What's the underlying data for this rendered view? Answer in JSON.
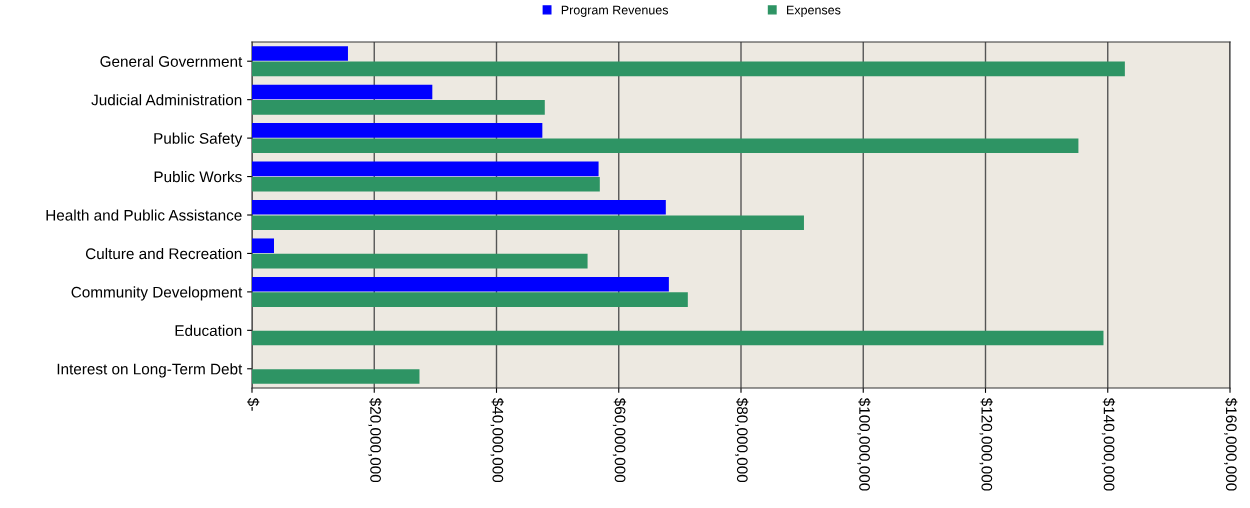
{
  "chart_data": {
    "type": "bar",
    "orientation": "horizontal",
    "categories": [
      "General Government",
      "Judicial Administration",
      "Public Safety",
      "Public Works",
      "Health and Public Assistance",
      "Culture and Recreation",
      "Community Development",
      "Education",
      "Interest on Long-Term Debt"
    ],
    "series": [
      {
        "name": "Program Revenues",
        "color": "#0000ff",
        "values": [
          15700000,
          29500000,
          47500000,
          56700000,
          67700000,
          3600000,
          68200000,
          null,
          null
        ]
      },
      {
        "name": "Expenses",
        "color": "#2e9464",
        "values": [
          142800000,
          47900000,
          135200000,
          56900000,
          90300000,
          54900000,
          71300000,
          139300000,
          27400000
        ]
      }
    ],
    "xlim": [
      0,
      160000000
    ],
    "xticks": [
      {
        "value": 0,
        "label": "$-"
      },
      {
        "value": 20000000,
        "label": "$20,000,000"
      },
      {
        "value": 40000000,
        "label": "$40,000,000"
      },
      {
        "value": 60000000,
        "label": "$60,000,000"
      },
      {
        "value": 80000000,
        "label": "$80,000,000"
      },
      {
        "value": 100000000,
        "label": "$100,000,000"
      },
      {
        "value": 120000000,
        "label": "$120,000,000"
      },
      {
        "value": 140000000,
        "label": "$140,000,000"
      },
      {
        "value": 160000000,
        "label": "$160,000,000"
      }
    ],
    "grid": "x",
    "legend": "top"
  }
}
